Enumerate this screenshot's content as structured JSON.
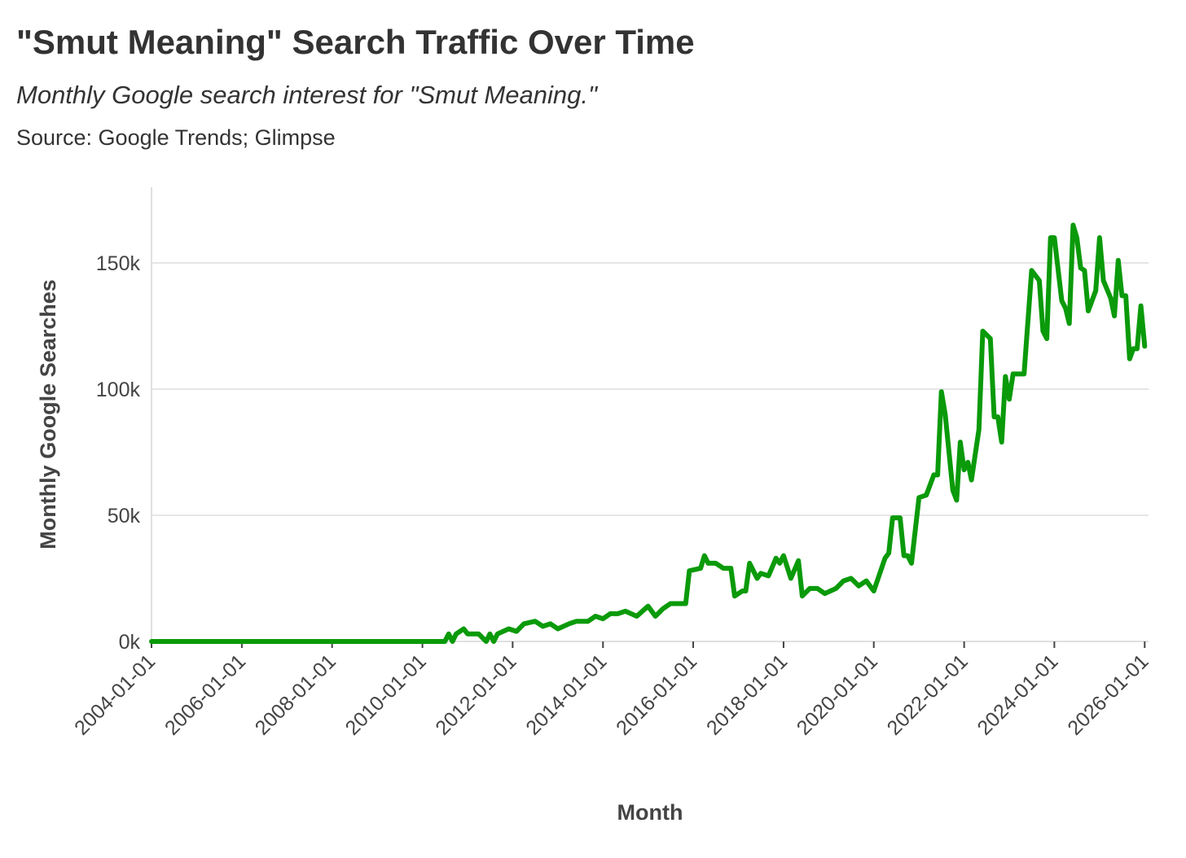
{
  "chart_data": {
    "type": "line",
    "title": "\"Smut Meaning\" Search Traffic Over Time",
    "subtitle": "Monthly Google search interest for \"Smut Meaning.\"",
    "source": "Source: Google Trends; Glimpse",
    "x_label": "Month",
    "y_label": "Monthly Google Searches",
    "xlim": [
      "2004-01-01",
      "2026-02-01"
    ],
    "xticks": [
      "2004-01-01",
      "2006-01-01",
      "2008-01-01",
      "2010-01-01",
      "2012-01-01",
      "2014-01-01",
      "2016-01-01",
      "2018-01-01",
      "2020-01-01",
      "2022-01-01",
      "2024-01-01",
      "2026-01-01"
    ],
    "ylim": [
      0,
      180000
    ],
    "yticks": [
      {
        "value": 0,
        "label": "0k"
      },
      {
        "value": 50000,
        "label": "50k"
      },
      {
        "value": 100000,
        "label": "100k"
      },
      {
        "value": 150000,
        "label": "150k"
      }
    ],
    "grid": true,
    "x": [
      "2004-01-01",
      "2010-07-01",
      "2010-08-01",
      "2010-09-01",
      "2010-10-01",
      "2010-12-01",
      "2011-01-01",
      "2011-04-01",
      "2011-06-01",
      "2011-07-01",
      "2011-08-01",
      "2011-09-01",
      "2011-12-01",
      "2012-02-01",
      "2012-04-01",
      "2012-07-01",
      "2012-09-01",
      "2012-11-01",
      "2013-01-01",
      "2013-04-01",
      "2013-06-01",
      "2013-09-01",
      "2013-11-01",
      "2014-01-01",
      "2014-03-01",
      "2014-05-01",
      "2014-07-01",
      "2014-10-01",
      "2015-01-01",
      "2015-03-01",
      "2015-05-01",
      "2015-07-01",
      "2015-11-01",
      "2015-12-01",
      "2016-03-01",
      "2016-04-01",
      "2016-05-01",
      "2016-07-01",
      "2016-09-01",
      "2016-11-01",
      "2016-12-01",
      "2017-02-01",
      "2017-03-01",
      "2017-04-01",
      "2017-06-01",
      "2017-07-01",
      "2017-09-01",
      "2017-11-01",
      "2017-12-01",
      "2018-01-01",
      "2018-03-01",
      "2018-05-01",
      "2018-06-01",
      "2018-08-01",
      "2018-10-01",
      "2018-12-01",
      "2019-03-01",
      "2019-05-01",
      "2019-07-01",
      "2019-09-01",
      "2019-11-01",
      "2020-01-01",
      "2020-04-01",
      "2020-05-01",
      "2020-06-01",
      "2020-08-01",
      "2020-09-01",
      "2020-10-01",
      "2020-11-01",
      "2021-01-01",
      "2021-03-01",
      "2021-05-01",
      "2021-06-01",
      "2021-07-01",
      "2021-08-01",
      "2021-10-01",
      "2021-11-01",
      "2021-12-01",
      "2022-01-01",
      "2022-02-01",
      "2022-03-01",
      "2022-05-01",
      "2022-06-01",
      "2022-08-01",
      "2022-09-01",
      "2022-10-01",
      "2022-11-01",
      "2022-12-01",
      "2023-01-01",
      "2023-02-01",
      "2023-05-01",
      "2023-07-01",
      "2023-09-01",
      "2023-10-01",
      "2023-11-01",
      "2023-12-01",
      "2024-01-01",
      "2024-03-01",
      "2024-04-01",
      "2024-05-01",
      "2024-06-01",
      "2024-07-01",
      "2024-08-01",
      "2024-09-01",
      "2024-10-01",
      "2024-12-01",
      "2025-01-01",
      "2025-02-01",
      "2025-04-01",
      "2025-05-01",
      "2025-06-01",
      "2025-07-01",
      "2025-08-01",
      "2025-09-01",
      "2025-10-01",
      "2025-11-01",
      "2025-12-01",
      "2026-01-01"
    ],
    "series": [
      {
        "name": "Monthly Google Searches",
        "color": "#0a9a0a",
        "values": [
          0,
          0,
          3000,
          0,
          3000,
          5000,
          3000,
          3000,
          0,
          3000,
          0,
          3000,
          5000,
          4000,
          7000,
          8000,
          6000,
          7000,
          5000,
          7000,
          8000,
          8000,
          10000,
          9000,
          11000,
          11000,
          12000,
          10000,
          14000,
          10000,
          13000,
          15000,
          15000,
          28000,
          29000,
          34000,
          31000,
          31000,
          29000,
          29000,
          18000,
          20000,
          20000,
          31000,
          25000,
          27000,
          26000,
          33000,
          31000,
          34000,
          25000,
          32000,
          18000,
          21000,
          21000,
          19000,
          21000,
          24000,
          25000,
          22000,
          24000,
          20000,
          33000,
          35000,
          49000,
          49000,
          34000,
          34000,
          31000,
          57000,
          58000,
          66000,
          66000,
          99000,
          90000,
          60000,
          56000,
          79000,
          68000,
          71000,
          64000,
          84000,
          123000,
          120000,
          89000,
          89000,
          79000,
          105000,
          96000,
          106000,
          106000,
          147000,
          143000,
          123000,
          120000,
          160000,
          160000,
          135000,
          132000,
          126000,
          165000,
          160000,
          148000,
          147000,
          131000,
          139000,
          160000,
          143000,
          136000,
          129000,
          151000,
          137000,
          137000,
          112000,
          116000,
          116000,
          133000,
          117000
        ]
      }
    ]
  }
}
